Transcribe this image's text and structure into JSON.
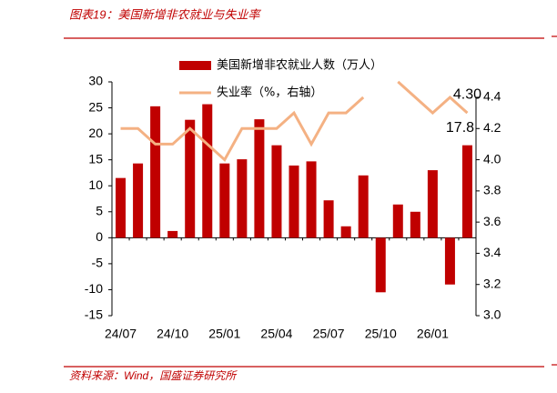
{
  "chart_data": {
    "type": "bar_line",
    "title": "图表19：美国新增非农就业与失业率",
    "source": "资料来源：Wind，国盛证券研究所",
    "categories": [
      "24/07",
      null,
      null,
      "24/10",
      null,
      null,
      "25/01",
      null,
      null,
      "25/04",
      null,
      null,
      "25/07",
      null,
      null,
      "25/10",
      null,
      null,
      "26/01",
      null,
      null
    ],
    "series": [
      {
        "name": "美国新增非农就业人数（万人）",
        "type": "bar",
        "color": "#c00000",
        "values": [
          11.5,
          14.3,
          25.3,
          1.3,
          22.7,
          25.7,
          14.3,
          15.1,
          22.8,
          17.8,
          13.9,
          14.7,
          7.2,
          2.2,
          12,
          -10.5,
          6.4,
          5,
          13,
          -9,
          17.8
        ],
        "value_labels": [
          null,
          null,
          null,
          null,
          null,
          null,
          null,
          null,
          null,
          null,
          null,
          null,
          null,
          null,
          null,
          null,
          null,
          null,
          null,
          null,
          "17.8"
        ]
      },
      {
        "name": "失业率（%，右轴）",
        "type": "line",
        "axis": "y2",
        "color": "#f4b183",
        "values": [
          4.2,
          4.2,
          4.1,
          4.1,
          4.2,
          4.1,
          4.0,
          4.2,
          4.2,
          4.2,
          4.3,
          4.1,
          4.3,
          4.3,
          4.4,
          null,
          4.5,
          4.4,
          4.3,
          4.4,
          4.3
        ],
        "value_labels": [
          null,
          null,
          null,
          null,
          null,
          null,
          null,
          null,
          null,
          null,
          null,
          null,
          null,
          null,
          null,
          null,
          null,
          null,
          null,
          null,
          "4.30"
        ]
      }
    ],
    "ylim": [
      -15,
      30
    ],
    "yticks": [
      -15,
      -10,
      -5,
      0,
      5,
      10,
      15,
      20,
      25,
      30
    ],
    "y2lim": [
      3.0,
      4.4
    ],
    "y2ticks": [
      {
        "value": 3.0,
        "label": "3.0"
      },
      3.2,
      3.4,
      3.6,
      3.8,
      {
        "value": 4.0,
        "label": "4.0"
      },
      4.2,
      4.4
    ],
    "legend": "top",
    "grid": false
  }
}
